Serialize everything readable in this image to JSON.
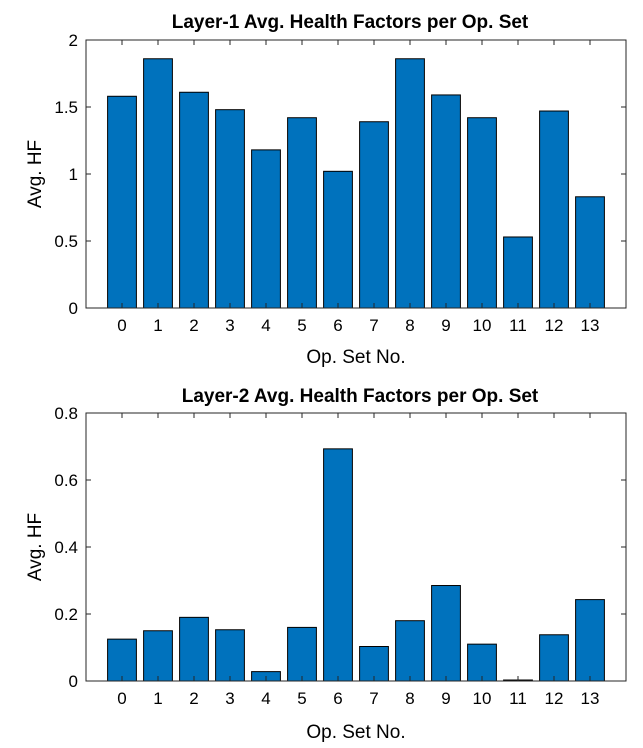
{
  "chart_data": [
    {
      "type": "bar",
      "title": "Layer-1 Avg. Health Factors per Op. Set",
      "xlabel": "Op. Set No.",
      "ylabel": "Avg. HF",
      "categories": [
        "0",
        "1",
        "2",
        "3",
        "4",
        "5",
        "6",
        "7",
        "8",
        "9",
        "10",
        "11",
        "12",
        "13"
      ],
      "values": [
        1.58,
        1.86,
        1.61,
        1.48,
        1.18,
        1.42,
        1.02,
        1.39,
        1.86,
        1.59,
        1.42,
        0.53,
        1.47,
        0.83
      ],
      "ylim": [
        0,
        2
      ],
      "yticks": [
        0,
        0.5,
        1,
        1.5,
        2
      ],
      "ytick_labels": [
        "0",
        "0.5",
        "1",
        "1.5",
        "2"
      ],
      "grid": false,
      "bar_color": "#0072BD"
    },
    {
      "type": "bar",
      "title": "Layer-2 Avg. Health Factors per Op. Set",
      "xlabel": "Op. Set No.",
      "ylabel": "Avg. HF",
      "categories": [
        "0",
        "1",
        "2",
        "3",
        "4",
        "5",
        "6",
        "7",
        "8",
        "9",
        "10",
        "11",
        "12",
        "13"
      ],
      "values": [
        0.125,
        0.15,
        0.19,
        0.153,
        0.028,
        0.16,
        0.693,
        0.103,
        0.18,
        0.285,
        0.11,
        0.003,
        0.138,
        0.243
      ],
      "ylim": [
        0,
        0.8
      ],
      "yticks": [
        0,
        0.2,
        0.4,
        0.6,
        0.8
      ],
      "ytick_labels": [
        "0",
        "0.2",
        "0.4",
        "0.6",
        "0.8"
      ],
      "grid": false,
      "bar_color": "#0072BD"
    }
  ]
}
